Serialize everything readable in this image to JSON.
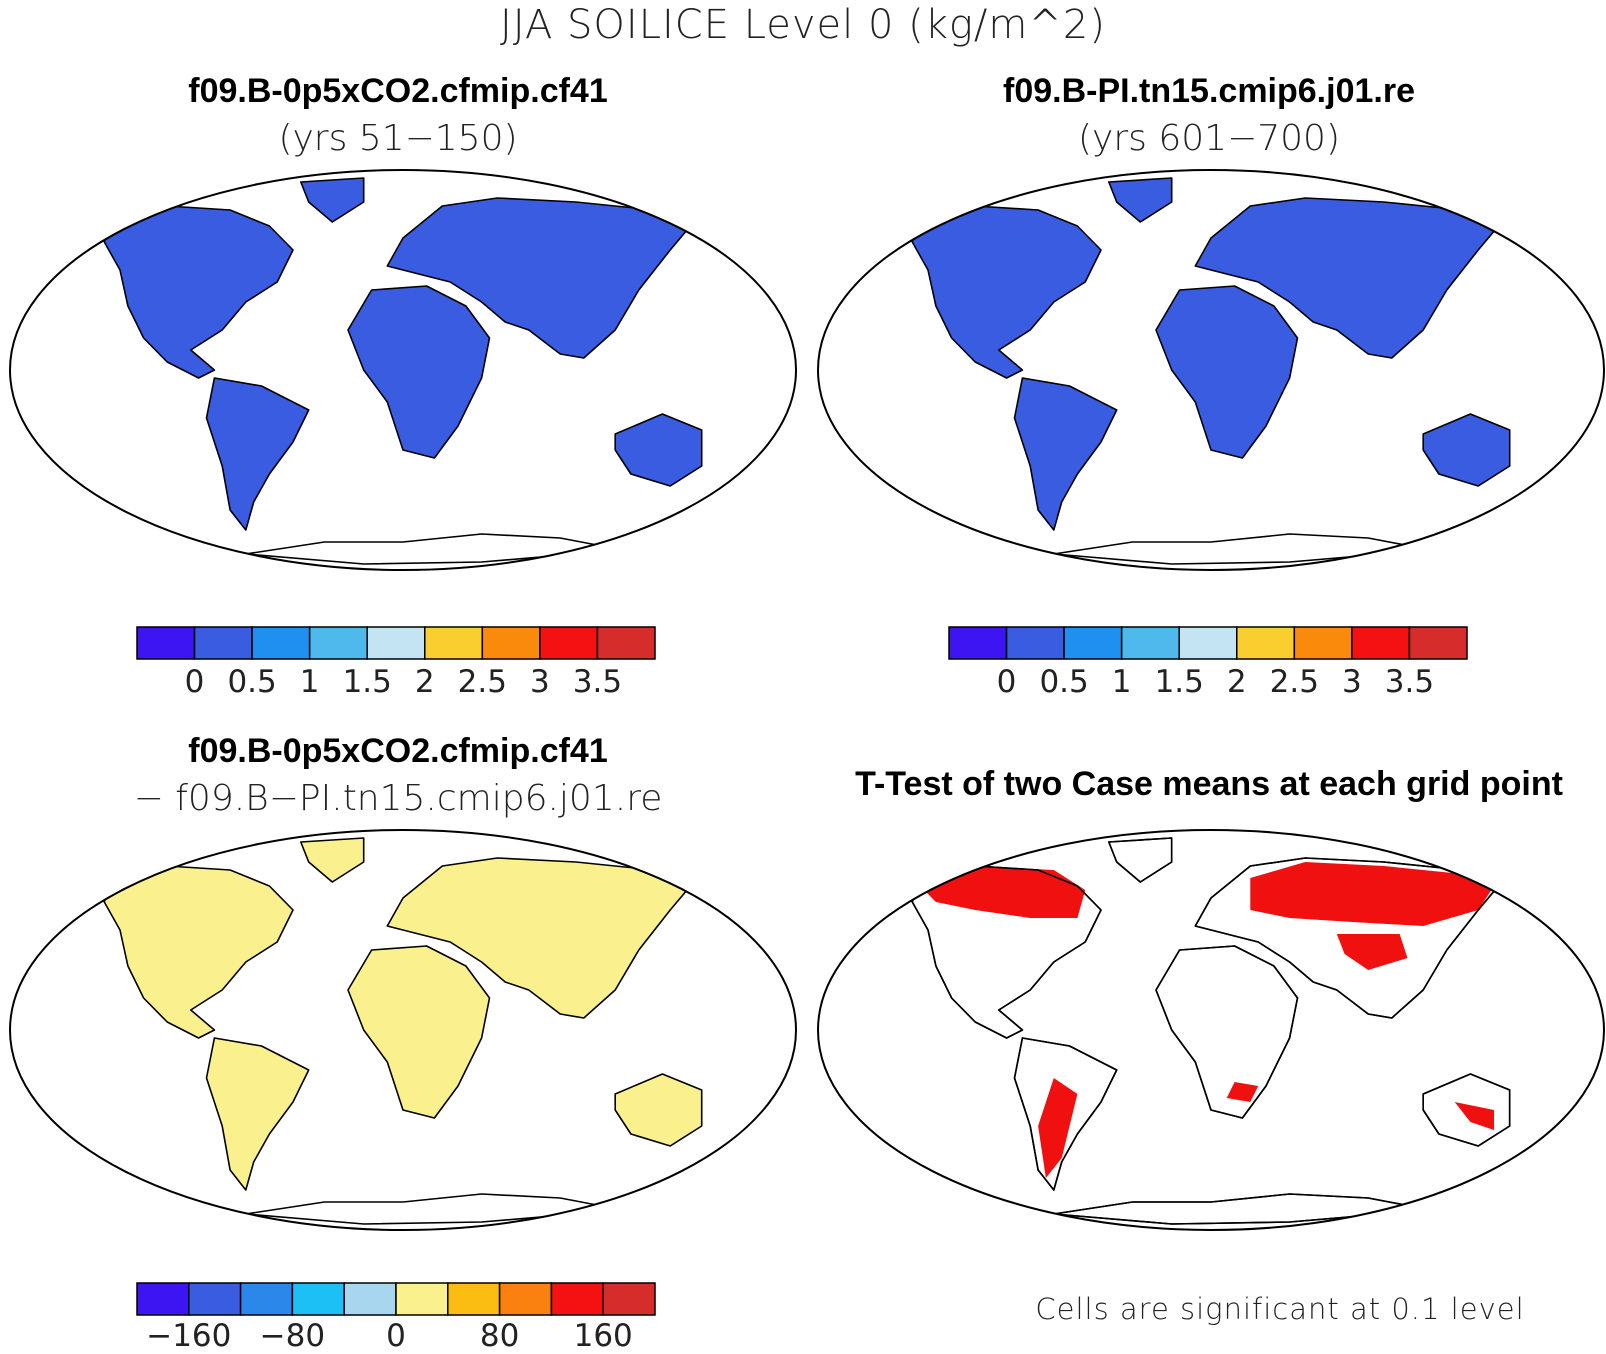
{
  "figure": {
    "title": "JJA SOILICE Level 0 (kg/m^2)"
  },
  "panels": [
    {
      "title": "f09.B-0p5xCO2.cfmip.cf41",
      "subtitle": "(yrs 51−150)",
      "colorbar": {
        "colors": [
          "#3d14f2",
          "#3a5ce0",
          "#1f8ff0",
          "#4fb9ee",
          "#c5e4f3",
          "#f9ce2e",
          "#fa8a0c",
          "#f51111",
          "#d62c2c"
        ],
        "tick_labels": [
          "0",
          "0.5",
          "1",
          "1.5",
          "2",
          "2.5",
          "3",
          "3.5"
        ]
      },
      "land_color": "#3a5ce0"
    },
    {
      "title": "f09.B-PI.tn15.cmip6.j01.re",
      "subtitle": "(yrs 601−700)",
      "colorbar": {
        "colors": [
          "#3d14f2",
          "#3a5ce0",
          "#1f8ff0",
          "#4fb9ee",
          "#c5e4f3",
          "#f9ce2e",
          "#fa8a0c",
          "#f51111",
          "#d62c2c"
        ],
        "tick_labels": [
          "0",
          "0.5",
          "1",
          "1.5",
          "2",
          "2.5",
          "3",
          "3.5"
        ]
      },
      "land_color": "#3a5ce0"
    },
    {
      "title": "f09.B-0p5xCO2.cfmip.cf41",
      "subtitle": "− f09.B−PI.tn15.cmip6.j01.re",
      "colorbar": {
        "colors": [
          "#3d14f2",
          "#3a5ce0",
          "#2b88ea",
          "#1cc0f5",
          "#a7d6ee",
          "#fbf08e",
          "#fbbd12",
          "#fa8010",
          "#f51111",
          "#d62c2c"
        ],
        "tick_labels": [
          "−160",
          "−80",
          "0",
          "80",
          "160"
        ]
      },
      "land_color": "#fbf08e"
    },
    {
      "title": "T-Test of two Case means at each grid point",
      "note": "Cells are significant at 0.1 level",
      "land_color": "#ffffff",
      "signif_color": "#f01010"
    }
  ]
}
